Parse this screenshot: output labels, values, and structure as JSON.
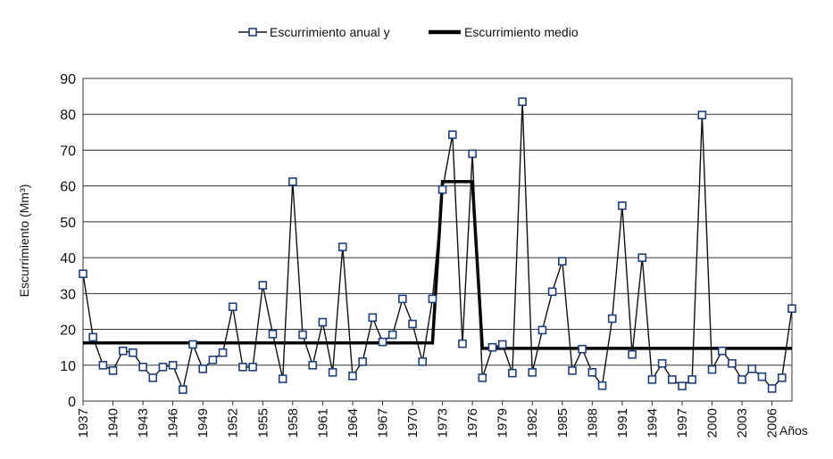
{
  "chart_data": {
    "type": "line",
    "xlabel": "Años",
    "ylabel": "Escurrimiento (Mm³)",
    "ylim": [
      0,
      90
    ],
    "yticks": [
      0,
      10,
      20,
      30,
      40,
      50,
      60,
      70,
      80,
      90
    ],
    "xlim": [
      1937,
      2008
    ],
    "xticks": [
      1937,
      1940,
      1943,
      1946,
      1949,
      1952,
      1955,
      1958,
      1961,
      1964,
      1967,
      1970,
      1973,
      1976,
      1979,
      1982,
      1985,
      1988,
      1991,
      1994,
      1997,
      2000,
      2003,
      2006
    ],
    "grid": "horizontal",
    "legend_position": "top-center",
    "series": [
      {
        "name": "Escurrimiento anual y",
        "style": "line-square-markers",
        "color": "#1f3f7a",
        "x": [
          1937,
          1938,
          1939,
          1940,
          1941,
          1942,
          1943,
          1944,
          1945,
          1946,
          1947,
          1948,
          1949,
          1950,
          1951,
          1952,
          1953,
          1954,
          1955,
          1956,
          1957,
          1958,
          1959,
          1960,
          1961,
          1962,
          1963,
          1964,
          1965,
          1966,
          1967,
          1968,
          1969,
          1970,
          1971,
          1972,
          1973,
          1974,
          1975,
          1976,
          1977,
          1978,
          1979,
          1980,
          1981,
          1982,
          1983,
          1984,
          1985,
          1986,
          1987,
          1988,
          1989,
          1990,
          1991,
          1992,
          1993,
          1994,
          1995,
          1996,
          1997,
          1998,
          1999,
          2000,
          2001,
          2002,
          2003,
          2004,
          2005,
          2006,
          2007,
          2008
        ],
        "values": [
          35.5,
          17.8,
          10,
          8.5,
          14,
          13.5,
          9.5,
          6.5,
          9.5,
          10,
          3.2,
          15.8,
          9,
          11.5,
          13.5,
          26.3,
          9.5,
          9.5,
          32.3,
          18.7,
          6.2,
          61.2,
          18.5,
          10,
          22,
          8,
          43,
          7,
          11,
          23.3,
          16.5,
          18.5,
          28.5,
          21.5,
          11,
          28.5,
          59,
          74.3,
          16,
          69,
          6.5,
          15,
          15.8,
          7.8,
          83.5,
          8,
          19.8,
          30.5,
          39,
          8.5,
          14.5,
          8,
          4.3,
          23,
          54.5,
          13,
          40,
          6,
          10.5,
          6,
          4.2,
          6,
          79.8,
          8.8,
          14,
          10.5,
          6,
          9,
          6.8,
          3.5,
          6.5,
          25.8
        ]
      },
      {
        "name": "Escurrimiento medio",
        "style": "thick-line",
        "color": "#000000",
        "x": [
          1937,
          1972,
          1973,
          1976,
          1977,
          2008
        ],
        "values": [
          16.2,
          16.2,
          61.2,
          61.2,
          14.7,
          14.7
        ]
      }
    ]
  }
}
